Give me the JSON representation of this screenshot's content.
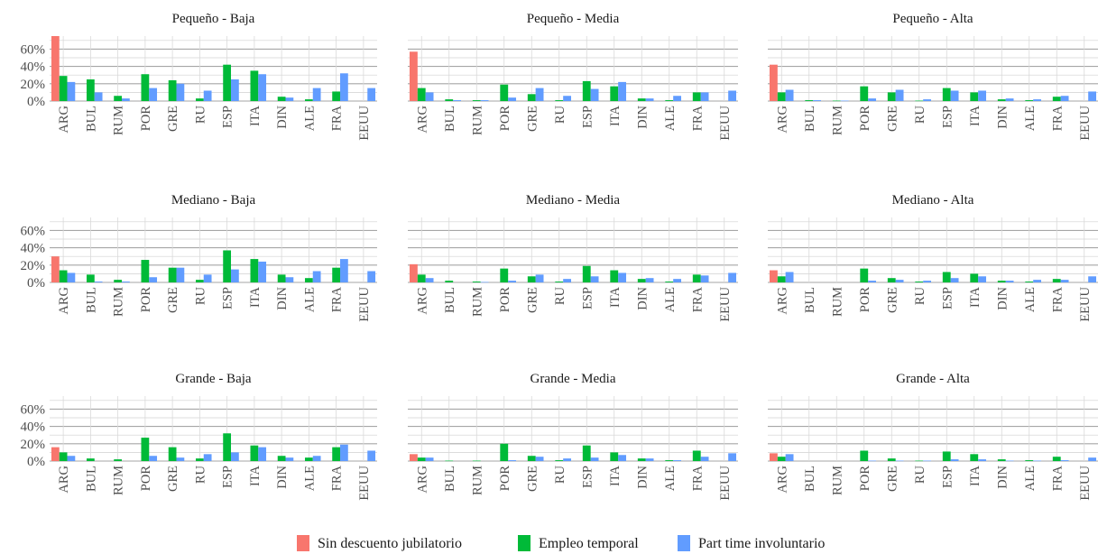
{
  "colors": {
    "Sin descuento jubilatorio": "#F8766D",
    "Empleo temporal": "#00BA38",
    "Part time involuntario": "#619CFF"
  },
  "chart_data": {
    "type": "bar",
    "layout": "facet_grid",
    "categories": [
      "ARG",
      "BUL",
      "RUM",
      "POR",
      "GRE",
      "RU",
      "ESP",
      "ITA",
      "DIN",
      "ALE",
      "FRA",
      "EEUU"
    ],
    "series_names": [
      "Sin descuento jubilatorio",
      "Empleo temporal",
      "Part time involuntario"
    ],
    "y_ticks": [
      "0%",
      "20%",
      "40%",
      "60%"
    ],
    "ylim": [
      0,
      0.75
    ],
    "grid": true,
    "legend_position": "bottom",
    "panels": [
      {
        "title": "Pequeño - Baja",
        "series": [
          {
            "name": "Sin descuento jubilatorio",
            "values": [
              0.75,
              0,
              0,
              0,
              0,
              0,
              0,
              0,
              0,
              0,
              0,
              0
            ]
          },
          {
            "name": "Empleo temporal",
            "values": [
              0.29,
              0.25,
              0.06,
              0.31,
              0.24,
              0.03,
              0.42,
              0.35,
              0.05,
              0.02,
              0.11,
              0
            ]
          },
          {
            "name": "Part time involuntario",
            "values": [
              0.22,
              0.1,
              0.03,
              0.15,
              0.2,
              0.12,
              0.25,
              0.31,
              0.04,
              0.15,
              0.32,
              0.15
            ]
          }
        ]
      },
      {
        "title": "Pequeño - Media",
        "series": [
          {
            "name": "Sin descuento jubilatorio",
            "values": [
              0.57,
              0,
              0,
              0,
              0,
              0,
              0,
              0,
              0,
              0,
              0,
              0
            ]
          },
          {
            "name": "Empleo temporal",
            "values": [
              0.15,
              0.02,
              0.01,
              0.19,
              0.08,
              0.01,
              0.23,
              0.17,
              0.03,
              0.01,
              0.1,
              0
            ]
          },
          {
            "name": "Part time involuntario",
            "values": [
              0.1,
              0.01,
              0.01,
              0.04,
              0.15,
              0.06,
              0.14,
              0.22,
              0.03,
              0.06,
              0.1,
              0.12
            ]
          }
        ]
      },
      {
        "title": "Pequeño - Alta",
        "series": [
          {
            "name": "Sin descuento jubilatorio",
            "values": [
              0.42,
              0,
              0,
              0,
              0,
              0,
              0,
              0,
              0,
              0,
              0,
              0
            ]
          },
          {
            "name": "Empleo temporal",
            "values": [
              0.1,
              0.01,
              0.005,
              0.17,
              0.1,
              0.005,
              0.15,
              0.1,
              0.02,
              0.01,
              0.05,
              0
            ]
          },
          {
            "name": "Part time involuntario",
            "values": [
              0.13,
              0.01,
              0.005,
              0.03,
              0.13,
              0.02,
              0.12,
              0.12,
              0.03,
              0.02,
              0.06,
              0.11
            ]
          }
        ]
      },
      {
        "title": "Mediano - Baja",
        "series": [
          {
            "name": "Sin descuento jubilatorio",
            "values": [
              0.3,
              0,
              0,
              0,
              0,
              0,
              0,
              0,
              0,
              0,
              0,
              0
            ]
          },
          {
            "name": "Empleo temporal",
            "values": [
              0.14,
              0.09,
              0.03,
              0.26,
              0.17,
              0.03,
              0.37,
              0.27,
              0.09,
              0.05,
              0.17,
              0
            ]
          },
          {
            "name": "Part time involuntario",
            "values": [
              0.11,
              0.01,
              0.01,
              0.06,
              0.17,
              0.09,
              0.15,
              0.24,
              0.06,
              0.13,
              0.27,
              0.13
            ]
          }
        ]
      },
      {
        "title": "Mediano - Media",
        "series": [
          {
            "name": "Sin descuento jubilatorio",
            "values": [
              0.21,
              0,
              0,
              0,
              0,
              0,
              0,
              0,
              0,
              0,
              0,
              0
            ]
          },
          {
            "name": "Empleo temporal",
            "values": [
              0.09,
              0.02,
              0.01,
              0.16,
              0.07,
              0.01,
              0.19,
              0.14,
              0.04,
              0.01,
              0.09,
              0
            ]
          },
          {
            "name": "Part time involuntario",
            "values": [
              0.05,
              0,
              0.005,
              0.02,
              0.09,
              0.04,
              0.07,
              0.11,
              0.05,
              0.04,
              0.08,
              0.11
            ]
          }
        ]
      },
      {
        "title": "Mediano - Alta",
        "series": [
          {
            "name": "Sin descuento jubilatorio",
            "values": [
              0.14,
              0,
              0,
              0,
              0,
              0,
              0,
              0,
              0,
              0,
              0,
              0
            ]
          },
          {
            "name": "Empleo temporal",
            "values": [
              0.07,
              0,
              0,
              0.16,
              0.05,
              0.01,
              0.12,
              0.1,
              0.02,
              0.01,
              0.04,
              0
            ]
          },
          {
            "name": "Part time involuntario",
            "values": [
              0.12,
              0,
              0,
              0.02,
              0.03,
              0.02,
              0.05,
              0.07,
              0.02,
              0.03,
              0.03,
              0.07
            ]
          }
        ]
      },
      {
        "title": "Grande - Baja",
        "series": [
          {
            "name": "Sin descuento jubilatorio",
            "values": [
              0.16,
              0,
              0,
              0,
              0,
              0,
              0,
              0,
              0,
              0,
              0,
              0
            ]
          },
          {
            "name": "Empleo temporal",
            "values": [
              0.1,
              0.03,
              0.02,
              0.27,
              0.16,
              0.03,
              0.32,
              0.18,
              0.06,
              0.04,
              0.16,
              0
            ]
          },
          {
            "name": "Part time involuntario",
            "values": [
              0.06,
              0,
              0,
              0.06,
              0.04,
              0.08,
              0.1,
              0.16,
              0.04,
              0.06,
              0.19,
              0.12
            ]
          }
        ]
      },
      {
        "title": "Grande - Media",
        "series": [
          {
            "name": "Sin descuento jubilatorio",
            "values": [
              0.08,
              0,
              0,
              0,
              0,
              0,
              0,
              0,
              0,
              0,
              0,
              0
            ]
          },
          {
            "name": "Empleo temporal",
            "values": [
              0.04,
              0.005,
              0.005,
              0.2,
              0.06,
              0.01,
              0.18,
              0.1,
              0.03,
              0.01,
              0.12,
              0
            ]
          },
          {
            "name": "Part time involuntario",
            "values": [
              0.04,
              0,
              0,
              0.01,
              0.05,
              0.03,
              0.04,
              0.07,
              0.03,
              0.01,
              0.05,
              0.09
            ]
          }
        ]
      },
      {
        "title": "Grande - Alta",
        "series": [
          {
            "name": "Sin descuento jubilatorio",
            "values": [
              0.09,
              0,
              0,
              0,
              0,
              0,
              0,
              0,
              0,
              0,
              0,
              0
            ]
          },
          {
            "name": "Empleo temporal",
            "values": [
              0.05,
              0,
              0,
              0.12,
              0.03,
              0.005,
              0.11,
              0.08,
              0.02,
              0.01,
              0.05,
              0
            ]
          },
          {
            "name": "Part time involuntario",
            "values": [
              0.08,
              0,
              0,
              0.005,
              0.005,
              0.005,
              0.02,
              0.02,
              0.005,
              0.005,
              0.01,
              0.04
            ]
          }
        ]
      }
    ],
    "legend": [
      "Sin descuento jubilatorio",
      "Empleo temporal",
      "Part time involuntario"
    ]
  }
}
